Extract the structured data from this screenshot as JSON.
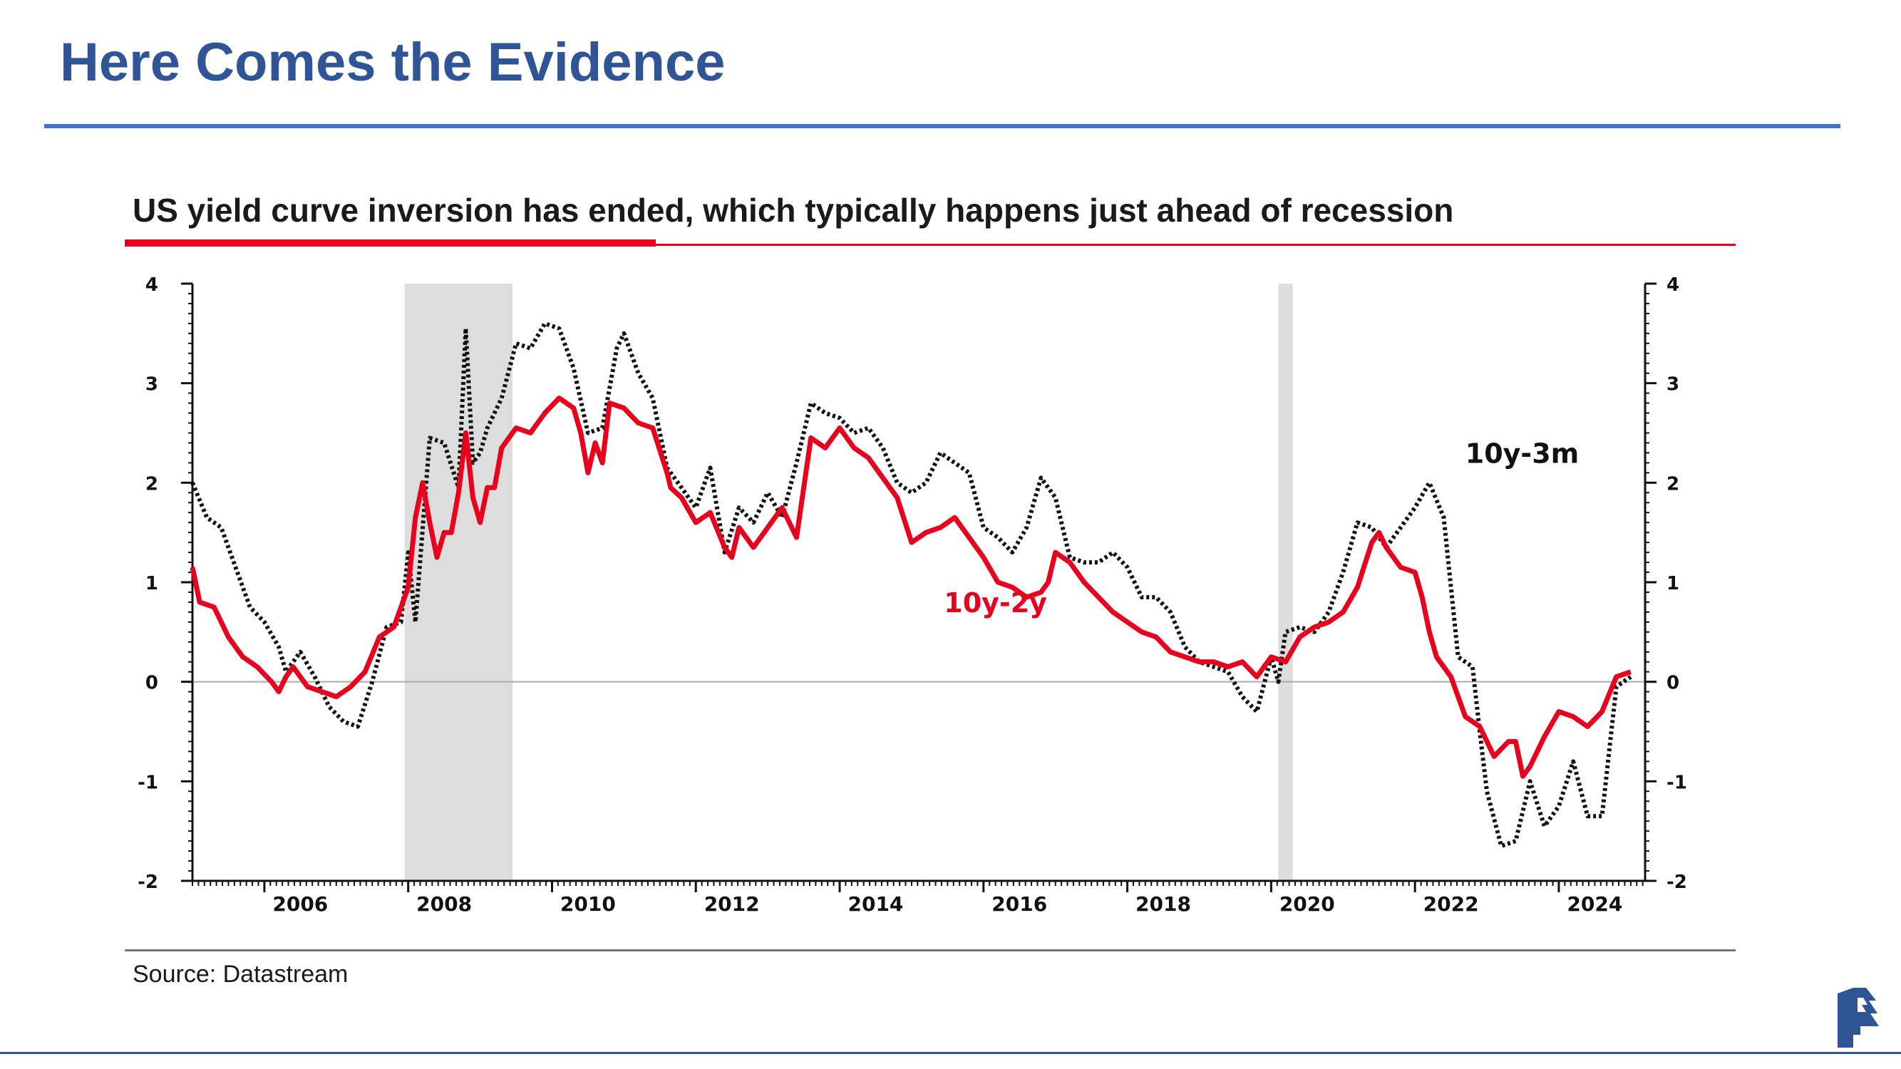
{
  "slide": {
    "title": "Here Comes the Evidence",
    "colors": {
      "title": "#2f5597",
      "rule": "#4472c4",
      "accent": "#e8001c"
    }
  },
  "chart_data": {
    "type": "line",
    "title": "US yield curve inversion has ended, which typically happens just ahead of recession",
    "xlabel": "",
    "ylabel": "",
    "xlim": [
      2005.0,
      2025.2
    ],
    "ylim": [
      -2,
      4
    ],
    "yticks": [
      4,
      3,
      2,
      1,
      0,
      -1,
      -2
    ],
    "xticks": [
      "2006",
      "2008",
      "2010",
      "2012",
      "2014",
      "2016",
      "2018",
      "2020",
      "2022",
      "2024"
    ],
    "grid": false,
    "zero_line": true,
    "dual_axis": "mirror",
    "recession_shading": [
      [
        2007.95,
        2009.45
      ],
      [
        2020.1,
        2020.3
      ]
    ],
    "series": [
      {
        "name": "10y-2y",
        "color": "#e8001c",
        "style": "solid",
        "x": [
          2005.0,
          2005.1,
          2005.3,
          2005.5,
          2005.7,
          2005.9,
          2006.1,
          2006.2,
          2006.3,
          2006.4,
          2006.6,
          2006.8,
          2007.0,
          2007.2,
          2007.4,
          2007.6,
          2007.8,
          2008.0,
          2008.1,
          2008.2,
          2008.3,
          2008.4,
          2008.5,
          2008.6,
          2008.7,
          2008.8,
          2008.9,
          2009.0,
          2009.1,
          2009.2,
          2009.3,
          2009.5,
          2009.7,
          2009.9,
          2010.1,
          2010.2,
          2010.3,
          2010.4,
          2010.5,
          2010.6,
          2010.7,
          2010.8,
          2011.0,
          2011.2,
          2011.4,
          2011.6,
          2011.65,
          2011.8,
          2012.0,
          2012.2,
          2012.4,
          2012.5,
          2012.6,
          2012.8,
          2013.0,
          2013.2,
          2013.4,
          2013.6,
          2013.8,
          2014.0,
          2014.2,
          2014.4,
          2014.6,
          2014.8,
          2015.0,
          2015.2,
          2015.4,
          2015.6,
          2015.8,
          2016.0,
          2016.2,
          2016.4,
          2016.6,
          2016.8,
          2016.9,
          2017.0,
          2017.2,
          2017.4,
          2017.6,
          2017.8,
          2018.0,
          2018.2,
          2018.4,
          2018.6,
          2018.8,
          2019.0,
          2019.2,
          2019.4,
          2019.6,
          2019.8,
          2020.0,
          2020.2,
          2020.4,
          2020.6,
          2020.8,
          2021.0,
          2021.2,
          2021.4,
          2021.5,
          2021.6,
          2021.8,
          2022.0,
          2022.1,
          2022.2,
          2022.3,
          2022.5,
          2022.7,
          2022.9,
          2023.1,
          2023.3,
          2023.4,
          2023.5,
          2023.6,
          2023.8,
          2024.0,
          2024.2,
          2024.4,
          2024.6,
          2024.8,
          2025.0
        ],
        "values": [
          1.15,
          0.8,
          0.75,
          0.45,
          0.25,
          0.15,
          0.0,
          -0.1,
          0.05,
          0.15,
          -0.05,
          -0.1,
          -0.15,
          -0.05,
          0.1,
          0.45,
          0.55,
          0.95,
          1.65,
          2.0,
          1.6,
          1.25,
          1.5,
          1.5,
          1.9,
          2.5,
          1.85,
          1.6,
          1.95,
          1.95,
          2.35,
          2.55,
          2.5,
          2.7,
          2.85,
          2.8,
          2.75,
          2.5,
          2.1,
          2.4,
          2.2,
          2.8,
          2.75,
          2.6,
          2.55,
          2.1,
          1.95,
          1.85,
          1.6,
          1.7,
          1.35,
          1.25,
          1.55,
          1.35,
          1.55,
          1.75,
          1.45,
          2.45,
          2.35,
          2.55,
          2.35,
          2.25,
          2.05,
          1.85,
          1.4,
          1.5,
          1.55,
          1.65,
          1.45,
          1.25,
          1.0,
          0.95,
          0.85,
          0.9,
          1.0,
          1.3,
          1.2,
          1.0,
          0.85,
          0.7,
          0.6,
          0.5,
          0.45,
          0.3,
          0.25,
          0.2,
          0.2,
          0.15,
          0.2,
          0.05,
          0.25,
          0.2,
          0.45,
          0.55,
          0.6,
          0.7,
          0.95,
          1.4,
          1.5,
          1.35,
          1.15,
          1.1,
          0.85,
          0.5,
          0.25,
          0.05,
          -0.35,
          -0.45,
          -0.75,
          -0.6,
          -0.6,
          -0.95,
          -0.85,
          -0.55,
          -0.3,
          -0.35,
          -0.45,
          -0.3,
          0.05,
          0.1
        ]
      },
      {
        "name": "10y-3m",
        "color": "#111111",
        "style": "dotted",
        "x": [
          2005.0,
          2005.2,
          2005.4,
          2005.6,
          2005.8,
          2006.0,
          2006.2,
          2006.3,
          2006.5,
          2006.7,
          2006.9,
          2007.1,
          2007.3,
          2007.5,
          2007.7,
          2007.9,
          2008.0,
          2008.1,
          2008.3,
          2008.5,
          2008.7,
          2008.8,
          2008.9,
          2009.0,
          2009.1,
          2009.3,
          2009.5,
          2009.7,
          2009.9,
          2010.1,
          2010.3,
          2010.5,
          2010.7,
          2010.9,
          2011.0,
          2011.2,
          2011.4,
          2011.6,
          2011.8,
          2012.0,
          2012.2,
          2012.4,
          2012.6,
          2012.8,
          2013.0,
          2013.2,
          2013.4,
          2013.6,
          2013.8,
          2014.0,
          2014.2,
          2014.4,
          2014.6,
          2014.8,
          2015.0,
          2015.2,
          2015.4,
          2015.6,
          2015.8,
          2016.0,
          2016.2,
          2016.4,
          2016.6,
          2016.8,
          2017.0,
          2017.2,
          2017.4,
          2017.6,
          2017.8,
          2018.0,
          2018.2,
          2018.4,
          2018.6,
          2018.8,
          2019.0,
          2019.2,
          2019.4,
          2019.6,
          2019.8,
          2020.0,
          2020.1,
          2020.2,
          2020.4,
          2020.6,
          2020.8,
          2021.0,
          2021.2,
          2021.4,
          2021.6,
          2021.8,
          2022.0,
          2022.2,
          2022.4,
          2022.6,
          2022.8,
          2022.9,
          2023.0,
          2023.2,
          2023.4,
          2023.6,
          2023.8,
          2024.0,
          2024.2,
          2024.4,
          2024.6,
          2024.8,
          2025.0
        ],
        "values": [
          2.0,
          1.65,
          1.55,
          1.15,
          0.75,
          0.6,
          0.35,
          0.1,
          0.3,
          0.05,
          -0.25,
          -0.4,
          -0.45,
          0.0,
          0.55,
          0.6,
          1.3,
          0.6,
          2.45,
          2.4,
          1.95,
          3.55,
          2.2,
          2.3,
          2.55,
          2.85,
          3.4,
          3.35,
          3.6,
          3.55,
          3.15,
          2.5,
          2.55,
          3.35,
          3.5,
          3.1,
          2.85,
          2.15,
          1.95,
          1.75,
          2.15,
          1.3,
          1.75,
          1.6,
          1.9,
          1.65,
          2.2,
          2.8,
          2.7,
          2.65,
          2.5,
          2.55,
          2.35,
          2.0,
          1.9,
          2.0,
          2.3,
          2.2,
          2.1,
          1.55,
          1.45,
          1.3,
          1.55,
          2.05,
          1.85,
          1.25,
          1.2,
          1.2,
          1.3,
          1.15,
          0.85,
          0.85,
          0.7,
          0.35,
          0.2,
          0.15,
          0.1,
          -0.15,
          -0.3,
          0.25,
          0.0,
          0.5,
          0.55,
          0.5,
          0.7,
          1.1,
          1.6,
          1.55,
          1.35,
          1.55,
          1.75,
          2.0,
          1.65,
          0.25,
          0.15,
          -0.5,
          -1.1,
          -1.65,
          -1.6,
          -1.0,
          -1.45,
          -1.25,
          -0.8,
          -1.35,
          -1.35,
          -0.05,
          0.05
        ]
      }
    ],
    "annotations": [
      {
        "text": "10y-3m",
        "x": 2022.7,
        "y": 2.2,
        "color": "#111111"
      },
      {
        "text": "10y-2y",
        "x": 2015.45,
        "y": 0.7,
        "color": "#e8001c"
      }
    ]
  },
  "footer": {
    "source": "Source: Datastream"
  }
}
